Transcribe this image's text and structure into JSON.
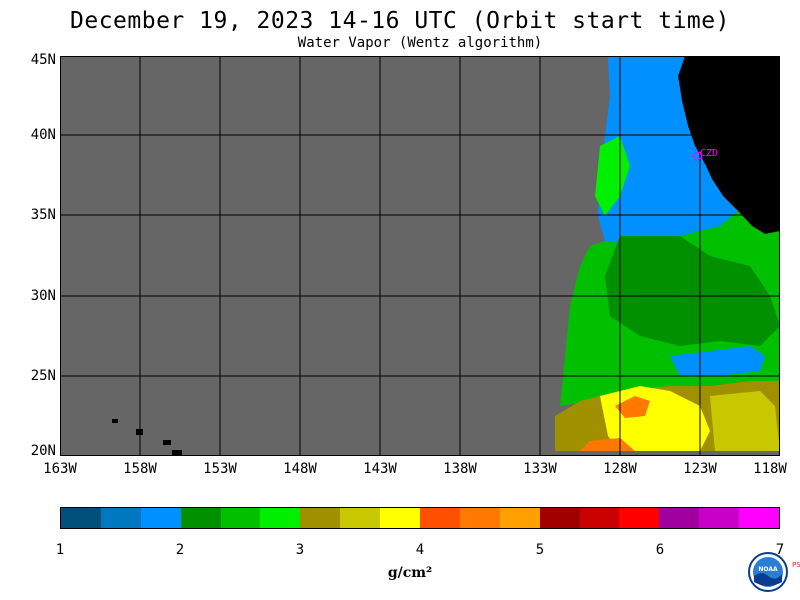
{
  "header": {
    "title": "December 19, 2023  14-16 UTC  (Orbit start time)",
    "subtitle": "Water Vapor (Wentz algorithm)"
  },
  "map": {
    "lat_labels": [
      "45N",
      "40N",
      "35N",
      "30N",
      "25N",
      "20N"
    ],
    "lon_labels": [
      "163W",
      "158W",
      "153W",
      "148W",
      "143W",
      "138W",
      "133W",
      "128W",
      "123W",
      "118W"
    ],
    "station_label": "CZD",
    "colors": {
      "no_data": "#666666",
      "land": "#000000",
      "grid": "#000000",
      "station": "#ff00ff"
    }
  },
  "colorbar": {
    "tick_labels": [
      "1",
      "2",
      "3",
      "4",
      "5",
      "6",
      "7"
    ],
    "unit": "g/cm²",
    "colors": [
      "#00507a",
      "#0078c0",
      "#0090ff",
      "#009000",
      "#00c000",
      "#00f000",
      "#a09000",
      "#c8c800",
      "#ffff00",
      "#ff5000",
      "#ff7800",
      "#ffa000",
      "#a00000",
      "#c80000",
      "#ff0000",
      "#a000a0",
      "#c800c8",
      "#ff00ff"
    ]
  },
  "footer": {
    "logo_text": "NOAA",
    "side_text": "PSL"
  }
}
